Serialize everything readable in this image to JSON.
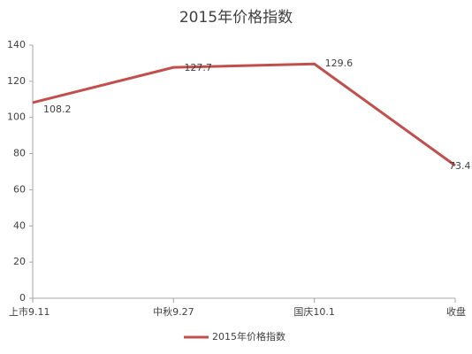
{
  "chart_data": {
    "type": "line",
    "title": "2015年价格指数",
    "categories": [
      "上市9.11",
      "中秋9.27",
      "国庆10.1",
      "收盘"
    ],
    "series": [
      {
        "name": "2015年价格指数",
        "color": "#c0504d",
        "values": [
          108.2,
          127.7,
          129.6,
          73.4
        ]
      }
    ],
    "ylim": [
      0,
      140
    ],
    "yticks": [
      0,
      20,
      40,
      60,
      80,
      100,
      120,
      140
    ],
    "grid": false,
    "legend": "bottom"
  }
}
